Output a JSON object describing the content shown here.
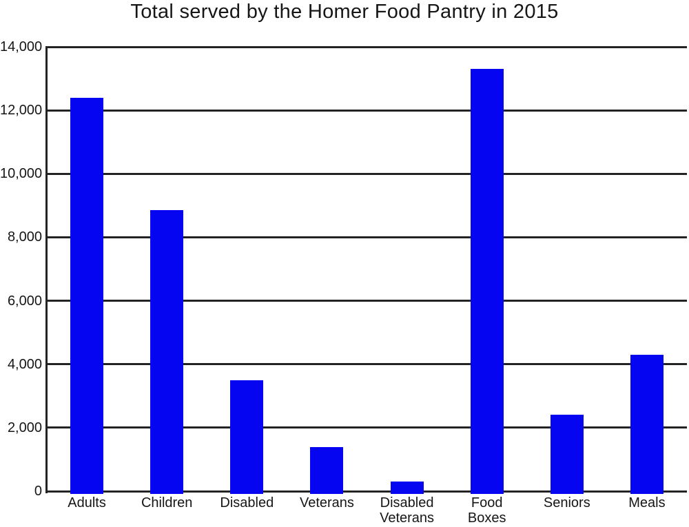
{
  "title": "Total served by the Homer Food Pantry in 2015",
  "chart_data": {
    "type": "bar",
    "title": "Total served by the Homer Food Pantry in 2015",
    "categories": [
      "Adults",
      "Children",
      "Disabled",
      "Veterans",
      "Disabled Veterans",
      "Food Boxes",
      "Seniors",
      "Meals"
    ],
    "categories_lines": [
      [
        "Adults"
      ],
      [
        "Children"
      ],
      [
        "Disabled"
      ],
      [
        "Veterans"
      ],
      [
        "Disabled",
        "Veterans"
      ],
      [
        "Food",
        "Boxes"
      ],
      [
        "Seniors"
      ],
      [
        "Meals"
      ]
    ],
    "values": [
      12400,
      8850,
      3500,
      1400,
      300,
      13300,
      2400,
      4300
    ],
    "xlabel": "",
    "ylabel": "",
    "ylim": [
      0,
      14000
    ],
    "ytick_step": 2000,
    "ytick_labels": [
      "0",
      "2,000",
      "4,000",
      "6,000",
      "8,000",
      "10,000",
      "12,000",
      "14,000"
    ],
    "grid": true,
    "legend": false,
    "bar_color": "#0505f2",
    "gridline_color": "#232323",
    "text_color": "#161616"
  }
}
